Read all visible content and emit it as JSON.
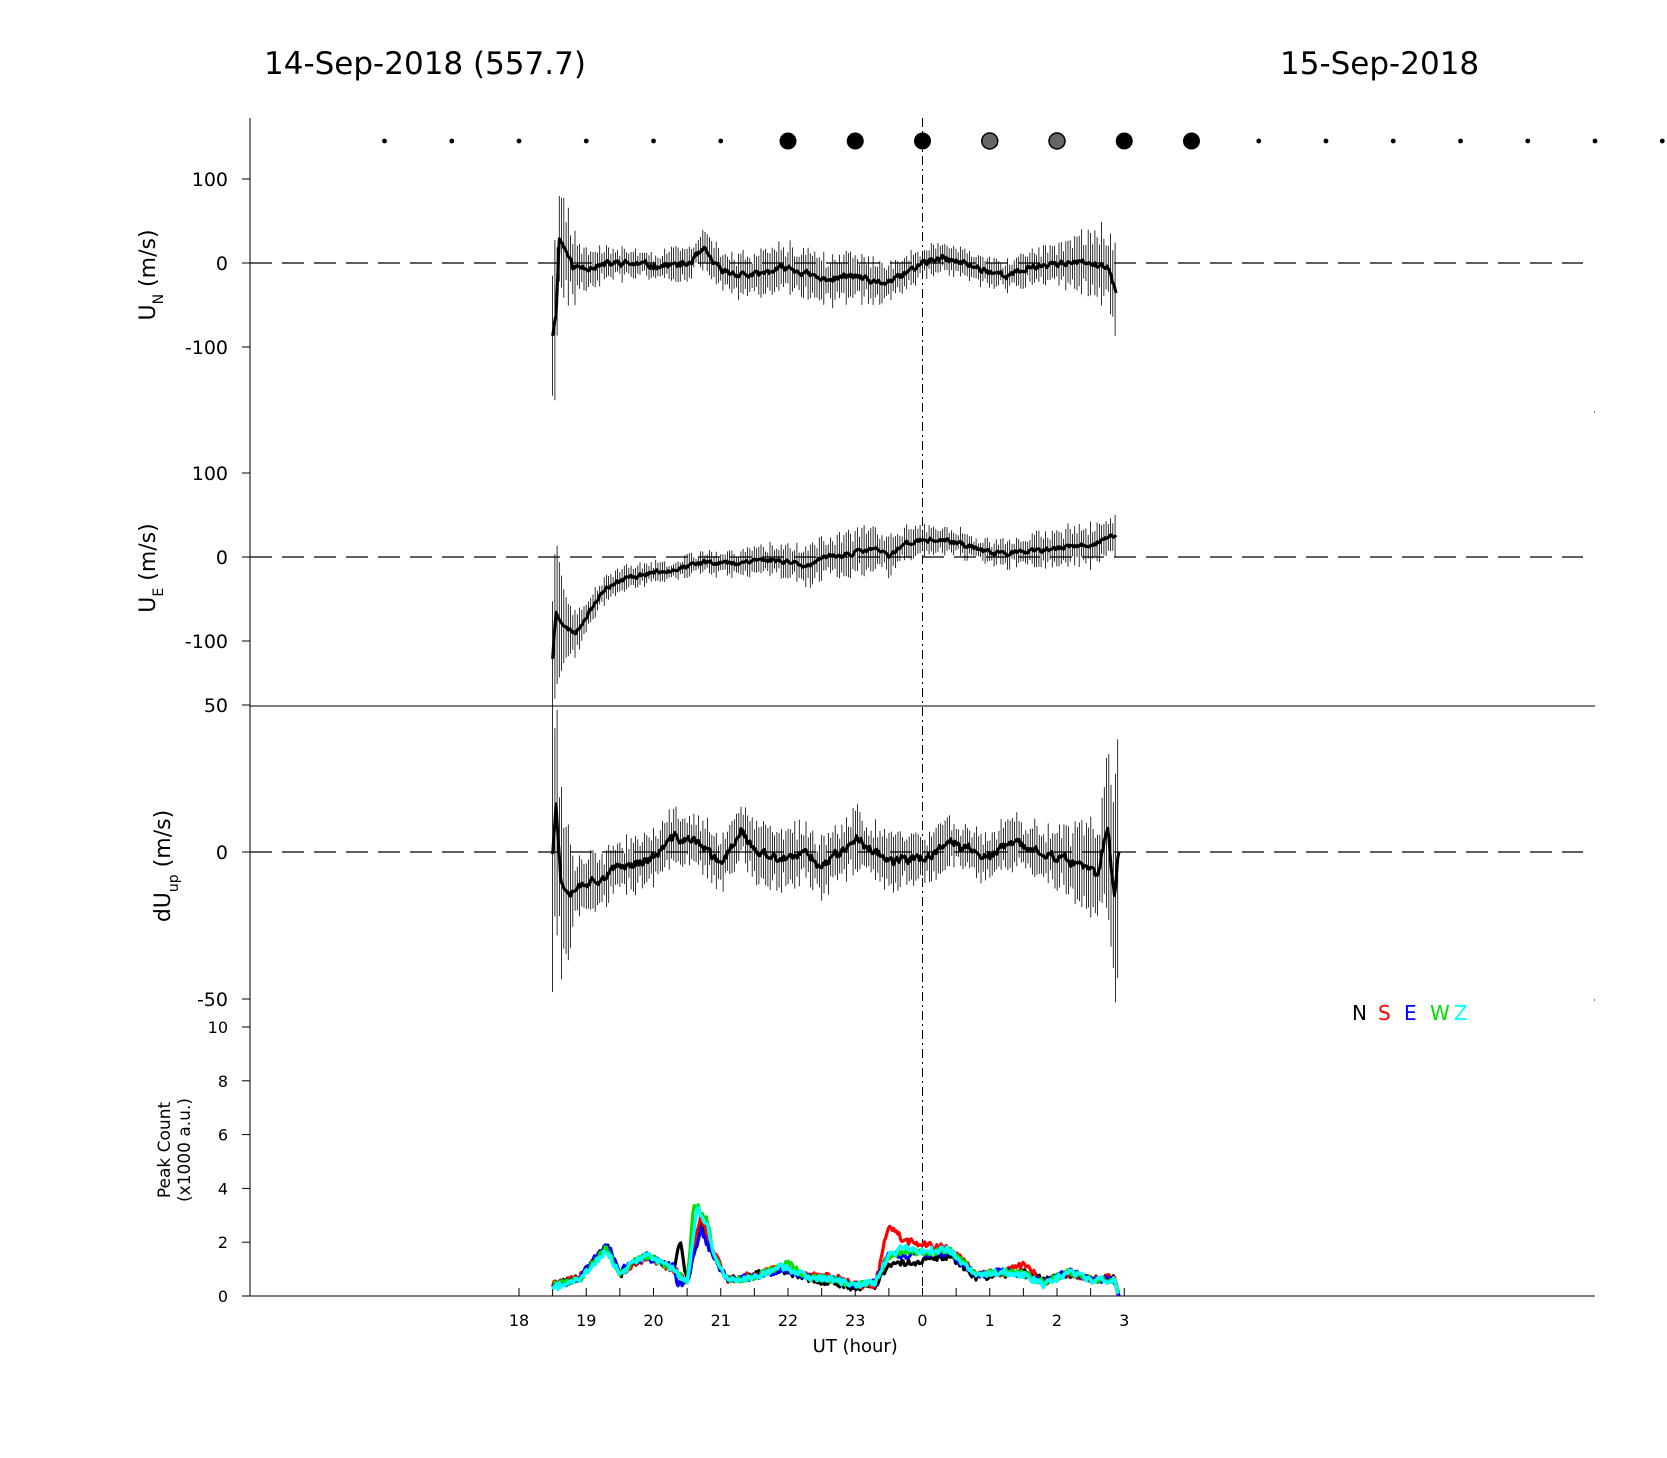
{
  "header": {
    "left_title": "14-Sep-2018 (557.7)",
    "right_title": "15-Sep-2018"
  },
  "colors": {
    "N": "#000000",
    "S": "#ff0000",
    "E": "#0000ff",
    "W": "#00e000",
    "Z": "#00ffff",
    "gray_marker": "#666666"
  },
  "chart_data": [
    {
      "type": "scatter",
      "panel": "quality-markers",
      "x": [
        16,
        17,
        18,
        19,
        20,
        21,
        22,
        23,
        24,
        25,
        26,
        27,
        28,
        29,
        30,
        31,
        32,
        33,
        34,
        35,
        36
      ],
      "marker": [
        "dot",
        "dot",
        "dot",
        "dot",
        "dot",
        "dot",
        "big-black",
        "big-black",
        "big-black",
        "big-gray",
        "big-gray",
        "big-black",
        "big-black",
        "dot",
        "dot",
        "dot",
        "dot",
        "dot",
        "dot",
        "dot",
        "dot"
      ]
    },
    {
      "type": "line",
      "panel": "UN",
      "ylabel": "U",
      "ylabel_sub": "N",
      "ylabel_unit": "(m/s)",
      "ylim": [
        -175,
        150
      ],
      "yticks": [
        "100",
        "0",
        "-100"
      ],
      "ytick_values": [
        100,
        0,
        -100
      ],
      "x_start": 18.5,
      "x_end": 26.88,
      "profile": [
        [
          18.5,
          -85
        ],
        [
          18.55,
          -60
        ],
        [
          18.6,
          30
        ],
        [
          18.7,
          15
        ],
        [
          18.8,
          -5
        ],
        [
          19,
          -5
        ],
        [
          19.5,
          0
        ],
        [
          20,
          -3
        ],
        [
          20.5,
          -2
        ],
        [
          20.75,
          15
        ],
        [
          21,
          -10
        ],
        [
          21.5,
          -15
        ],
        [
          22,
          -5
        ],
        [
          22.5,
          -20
        ],
        [
          23,
          -15
        ],
        [
          23.3,
          -25
        ],
        [
          23.6,
          -20
        ],
        [
          24,
          0
        ],
        [
          24.3,
          5
        ],
        [
          24.6,
          0
        ],
        [
          25,
          -10
        ],
        [
          25.3,
          -15
        ],
        [
          25.6,
          -5
        ],
        [
          26,
          0
        ],
        [
          26.5,
          0
        ],
        [
          26.8,
          -10
        ],
        [
          26.88,
          -35
        ]
      ],
      "errbar": [
        [
          18.5,
          90
        ],
        [
          18.6,
          60
        ],
        [
          19,
          20
        ],
        [
          20,
          15
        ],
        [
          21,
          20
        ],
        [
          22,
          25
        ],
        [
          23,
          25
        ],
        [
          24,
          15
        ],
        [
          25,
          15
        ],
        [
          26,
          20
        ],
        [
          26.88,
          45
        ]
      ],
      "noise": 7,
      "seed": 11
    },
    {
      "type": "line",
      "panel": "UE",
      "ylabel": "U",
      "ylabel_sub": "E",
      "ylabel_unit": "(m/s)",
      "ylim": [
        -175,
        150
      ],
      "yticks": [
        "100",
        "0",
        "-100"
      ],
      "ytick_values": [
        100,
        0,
        -100
      ],
      "x_start": 18.5,
      "x_end": 26.88,
      "profile": [
        [
          18.5,
          -120
        ],
        [
          18.55,
          -65
        ],
        [
          18.7,
          -85
        ],
        [
          18.85,
          -90
        ],
        [
          19,
          -70
        ],
        [
          19.3,
          -35
        ],
        [
          19.6,
          -25
        ],
        [
          20,
          -18
        ],
        [
          20.5,
          -12
        ],
        [
          20.8,
          -5
        ],
        [
          21.2,
          -8
        ],
        [
          21.5,
          -3
        ],
        [
          22,
          -5
        ],
        [
          22.3,
          -10
        ],
        [
          22.6,
          0
        ],
        [
          23,
          5
        ],
        [
          23.3,
          10
        ],
        [
          23.5,
          0
        ],
        [
          23.7,
          15
        ],
        [
          24,
          20
        ],
        [
          24.3,
          20
        ],
        [
          24.6,
          15
        ],
        [
          25,
          5
        ],
        [
          25.5,
          5
        ],
        [
          26,
          10
        ],
        [
          26.5,
          15
        ],
        [
          26.88,
          25
        ]
      ],
      "errbar": [
        [
          18.5,
          80
        ],
        [
          18.7,
          40
        ],
        [
          19,
          15
        ],
        [
          20,
          10
        ],
        [
          21,
          12
        ],
        [
          22,
          18
        ],
        [
          23,
          25
        ],
        [
          24,
          15
        ],
        [
          25,
          12
        ],
        [
          26,
          20
        ],
        [
          26.88,
          25
        ]
      ],
      "noise": 5,
      "seed": 23
    },
    {
      "type": "line",
      "panel": "dUup",
      "ylabel": "dU",
      "ylabel_sub": "up",
      "ylabel_unit": "(m/s)",
      "ylim": [
        -50,
        50
      ],
      "yticks": [
        "50",
        "0",
        "-50"
      ],
      "ytick_values": [
        50,
        0,
        -50
      ],
      "x_start": 18.5,
      "x_end": 26.92,
      "profile": [
        [
          18.5,
          0
        ],
        [
          18.55,
          18
        ],
        [
          18.62,
          -10
        ],
        [
          18.75,
          -13
        ],
        [
          19,
          -10
        ],
        [
          19.3,
          -8
        ],
        [
          19.5,
          -5
        ],
        [
          20,
          -2
        ],
        [
          20.3,
          5
        ],
        [
          20.7,
          3
        ],
        [
          21,
          -5
        ],
        [
          21.3,
          8
        ],
        [
          21.5,
          0
        ],
        [
          22,
          -3
        ],
        [
          22.3,
          0
        ],
        [
          22.5,
          -5
        ],
        [
          23,
          5
        ],
        [
          23.3,
          0
        ],
        [
          23.6,
          -3
        ],
        [
          24,
          -2
        ],
        [
          24.5,
          3
        ],
        [
          25,
          -2
        ],
        [
          25.3,
          3
        ],
        [
          25.8,
          0
        ],
        [
          26.2,
          -3
        ],
        [
          26.6,
          -8
        ],
        [
          26.75,
          8
        ],
        [
          26.85,
          -15
        ],
        [
          26.92,
          0
        ]
      ],
      "errbar": [
        [
          18.5,
          45
        ],
        [
          18.6,
          30
        ],
        [
          18.8,
          12
        ],
        [
          19,
          8
        ],
        [
          20,
          8
        ],
        [
          21,
          8
        ],
        [
          22,
          9
        ],
        [
          23,
          9
        ],
        [
          24,
          7
        ],
        [
          25,
          7
        ],
        [
          26,
          8
        ],
        [
          26.6,
          15
        ],
        [
          26.92,
          40
        ]
      ],
      "noise": 3,
      "seed": 37
    },
    {
      "type": "line",
      "panel": "peak",
      "ylabel_line1": "Peak Count",
      "ylabel_line2": "(x1000 a.u.)",
      "ylim": [
        0,
        10
      ],
      "yticks": [
        "10",
        "8",
        "6",
        "4",
        "2",
        "0"
      ],
      "ytick_values": [
        10,
        8,
        6,
        4,
        2,
        0
      ],
      "xlabel": "UT (hour)",
      "xlim": [
        14,
        34
      ],
      "xticks": [
        "18",
        "19",
        "20",
        "21",
        "22",
        "23",
        "0",
        "1",
        "2",
        "3"
      ],
      "xtick_values": [
        18,
        19,
        20,
        21,
        22,
        23,
        24,
        25,
        26,
        27
      ],
      "legend": [
        "N",
        "S",
        "E",
        "W",
        "Z"
      ],
      "series": [
        {
          "name": "N",
          "points": [
            [
              18.5,
              0.4
            ],
            [
              18.9,
              0.7
            ],
            [
              19.3,
              1.9
            ],
            [
              19.5,
              0.8
            ],
            [
              19.7,
              1.2
            ],
            [
              19.9,
              1.5
            ],
            [
              20.3,
              1.0
            ],
            [
              20.4,
              2.0
            ],
            [
              20.5,
              0.5
            ],
            [
              20.7,
              2.8
            ],
            [
              20.9,
              1.5
            ],
            [
              21.1,
              0.6
            ],
            [
              21.5,
              0.8
            ],
            [
              21.9,
              1.0
            ],
            [
              22.3,
              0.6
            ],
            [
              22.7,
              0.5
            ],
            [
              23,
              0.3
            ],
            [
              23.3,
              0.4
            ],
            [
              23.5,
              1.2
            ],
            [
              23.7,
              1.2
            ],
            [
              24.0,
              1.3
            ],
            [
              24.4,
              1.5
            ],
            [
              24.8,
              0.7
            ],
            [
              25.2,
              0.8
            ],
            [
              25.5,
              0.9
            ],
            [
              25.8,
              0.6
            ],
            [
              26.2,
              0.8
            ],
            [
              26.5,
              0.6
            ],
            [
              26.85,
              0.7
            ],
            [
              26.92,
              0
            ]
          ]
        },
        {
          "name": "S",
          "points": [
            [
              18.5,
              0.4
            ],
            [
              18.9,
              0.7
            ],
            [
              19.3,
              1.8
            ],
            [
              19.5,
              0.8
            ],
            [
              19.7,
              1.2
            ],
            [
              19.9,
              1.4
            ],
            [
              20.3,
              1.0
            ],
            [
              20.5,
              0.5
            ],
            [
              20.7,
              3.0
            ],
            [
              20.9,
              1.6
            ],
            [
              21.1,
              0.6
            ],
            [
              21.5,
              0.8
            ],
            [
              21.9,
              1.1
            ],
            [
              22.3,
              0.8
            ],
            [
              22.7,
              0.7
            ],
            [
              23,
              0.4
            ],
            [
              23.3,
              0.4
            ],
            [
              23.5,
              2.7
            ],
            [
              23.7,
              2.1
            ],
            [
              24.0,
              1.9
            ],
            [
              24.4,
              1.8
            ],
            [
              24.8,
              0.8
            ],
            [
              25.2,
              0.9
            ],
            [
              25.5,
              1.2
            ],
            [
              25.8,
              0.5
            ],
            [
              26.2,
              0.9
            ],
            [
              26.5,
              0.6
            ],
            [
              26.85,
              0.7
            ],
            [
              26.92,
              0
            ]
          ]
        },
        {
          "name": "E",
          "points": [
            [
              18.5,
              0.4
            ],
            [
              18.9,
              0.6
            ],
            [
              19.3,
              2.0
            ],
            [
              19.5,
              0.9
            ],
            [
              19.7,
              1.3
            ],
            [
              19.9,
              1.4
            ],
            [
              20.3,
              1.1
            ],
            [
              20.35,
              0.5
            ],
            [
              20.5,
              0.5
            ],
            [
              20.7,
              2.5
            ],
            [
              20.9,
              1.4
            ],
            [
              21.1,
              0.6
            ],
            [
              21.5,
              0.7
            ],
            [
              21.9,
              1.0
            ],
            [
              22.3,
              0.7
            ],
            [
              22.7,
              0.6
            ],
            [
              23,
              0.4
            ],
            [
              23.3,
              0.5
            ],
            [
              23.5,
              1.6
            ],
            [
              23.7,
              1.5
            ],
            [
              24.0,
              1.6
            ],
            [
              24.4,
              1.6
            ],
            [
              24.8,
              0.8
            ],
            [
              25.2,
              0.9
            ],
            [
              25.5,
              0.8
            ],
            [
              25.8,
              0.5
            ],
            [
              26.2,
              0.9
            ],
            [
              26.5,
              0.6
            ],
            [
              26.85,
              0.6
            ],
            [
              26.92,
              0
            ]
          ]
        },
        {
          "name": "W",
          "points": [
            [
              18.5,
              0.4
            ],
            [
              18.9,
              0.6
            ],
            [
              19.3,
              1.8
            ],
            [
              19.5,
              0.8
            ],
            [
              19.7,
              1.3
            ],
            [
              19.9,
              1.5
            ],
            [
              20.3,
              1.0
            ],
            [
              20.5,
              0.5
            ],
            [
              20.6,
              3.5
            ],
            [
              20.8,
              2.8
            ],
            [
              20.9,
              1.5
            ],
            [
              21.1,
              0.6
            ],
            [
              21.5,
              0.7
            ],
            [
              22.0,
              1.2
            ],
            [
              22.3,
              0.7
            ],
            [
              22.7,
              0.6
            ],
            [
              23,
              0.4
            ],
            [
              23.3,
              0.5
            ],
            [
              23.5,
              1.5
            ],
            [
              23.7,
              1.7
            ],
            [
              24.0,
              1.6
            ],
            [
              24.4,
              1.7
            ],
            [
              24.8,
              0.8
            ],
            [
              25.2,
              0.9
            ],
            [
              25.5,
              0.8
            ],
            [
              25.8,
              0.5
            ],
            [
              26.2,
              0.9
            ],
            [
              26.5,
              0.6
            ],
            [
              26.85,
              0.6
            ],
            [
              26.92,
              0
            ]
          ]
        },
        {
          "name": "Z",
          "points": [
            [
              18.5,
              0.3
            ],
            [
              18.9,
              0.6
            ],
            [
              19.3,
              1.7
            ],
            [
              19.5,
              0.8
            ],
            [
              19.7,
              1.3
            ],
            [
              19.9,
              1.5
            ],
            [
              20.3,
              1.0
            ],
            [
              20.5,
              0.5
            ],
            [
              20.65,
              3.3
            ],
            [
              20.8,
              2.6
            ],
            [
              20.9,
              1.5
            ],
            [
              21.1,
              0.6
            ],
            [
              21.5,
              0.7
            ],
            [
              21.9,
              1.1
            ],
            [
              22.3,
              0.7
            ],
            [
              22.7,
              0.6
            ],
            [
              23,
              0.4
            ],
            [
              23.3,
              0.5
            ],
            [
              23.5,
              1.5
            ],
            [
              23.7,
              1.8
            ],
            [
              24.0,
              1.7
            ],
            [
              24.4,
              1.7
            ],
            [
              24.8,
              0.8
            ],
            [
              25.2,
              0.9
            ],
            [
              25.5,
              0.8
            ],
            [
              25.8,
              0.4
            ],
            [
              26.2,
              0.9
            ],
            [
              26.5,
              0.6
            ],
            [
              26.85,
              0.6
            ],
            [
              26.92,
              0
            ]
          ]
        }
      ]
    }
  ]
}
